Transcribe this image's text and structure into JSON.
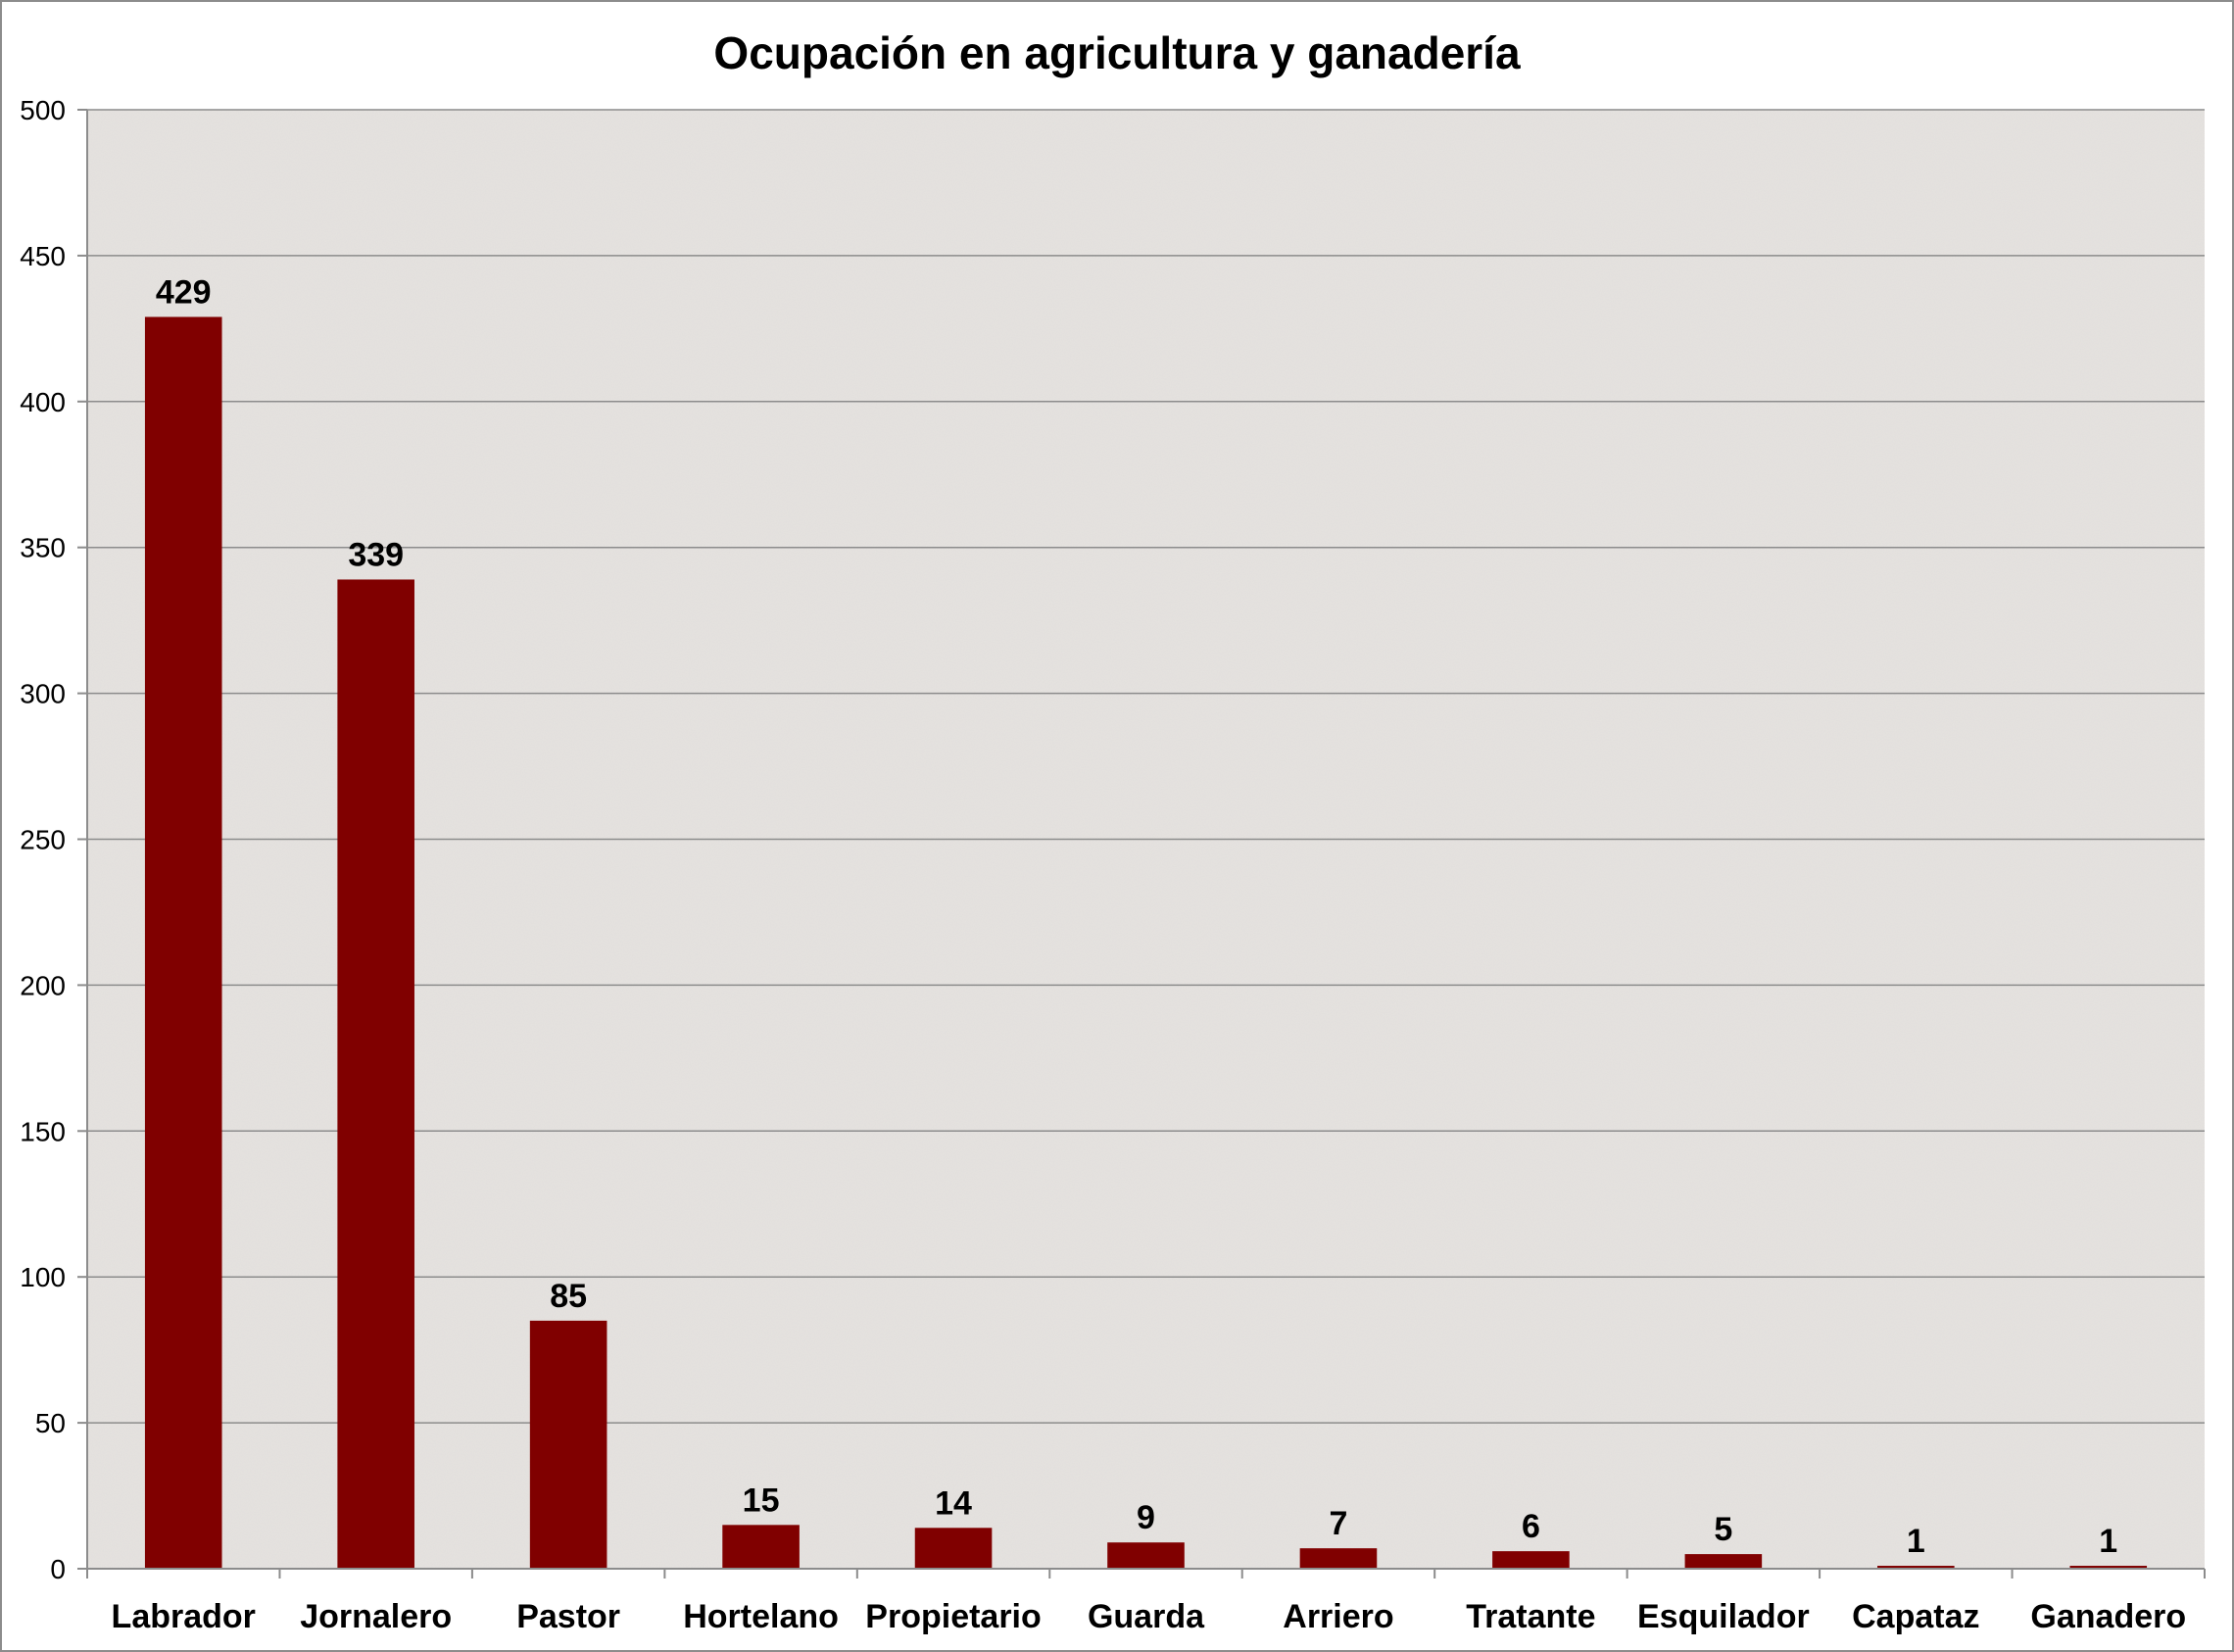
{
  "chart_data": {
    "type": "bar",
    "title": "Ocupación en agricultura y ganadería",
    "xlabel": "",
    "ylabel": "",
    "categories": [
      "Labrador",
      "Jornalero",
      "Pastor",
      "Hortelano",
      "Propietario",
      "Guarda",
      "Arriero",
      "Tratante",
      "Esquilador",
      "Capataz",
      "Ganadero"
    ],
    "values": [
      429,
      339,
      85,
      15,
      14,
      9,
      7,
      6,
      5,
      1,
      1
    ],
    "ylim": [
      0,
      500
    ],
    "yticks": [
      0,
      50,
      100,
      150,
      200,
      250,
      300,
      350,
      400,
      450,
      500
    ],
    "grid": true,
    "legend": "none",
    "bar_color": "#800000",
    "plot_background": "#e6e3e0",
    "gridline_color": "#8c8c8c"
  }
}
